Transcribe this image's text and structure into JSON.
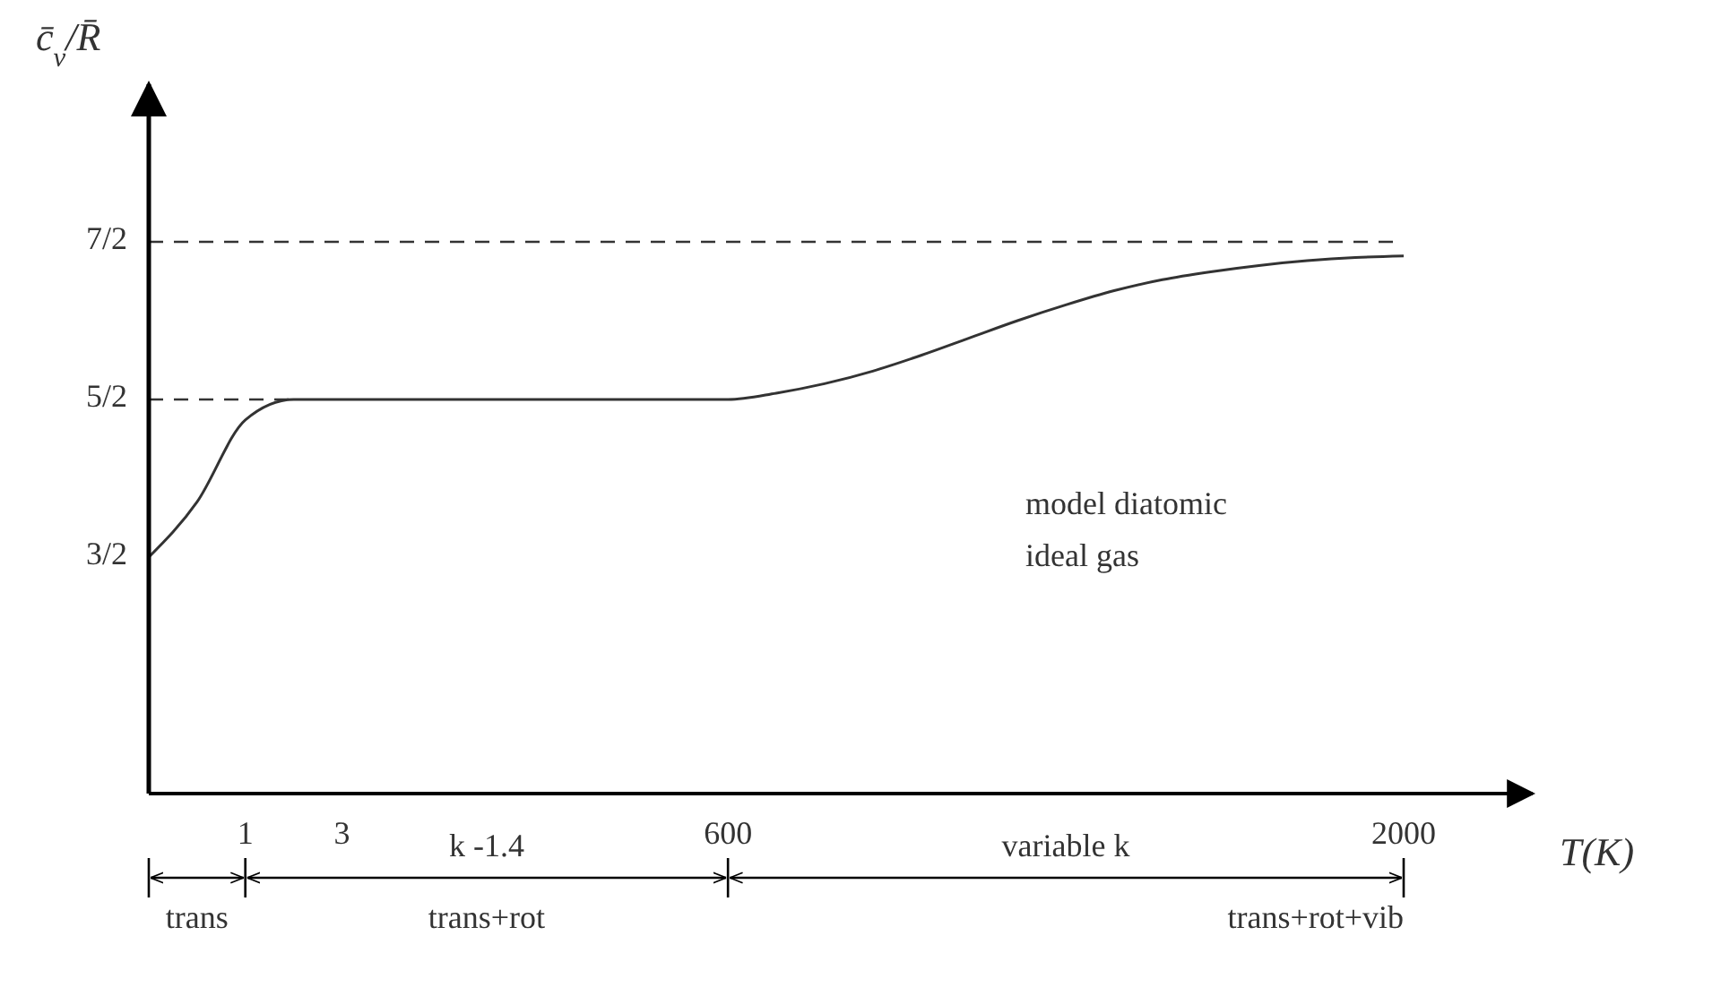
{
  "chart_data": {
    "type": "line",
    "ylabel": "c̄$_{v}$/R̄",
    "xlabel": "T(K)",
    "categories": [
      null,
      null,
      "1",
      null,
      "3",
      null,
      null,
      null,
      null,
      null,
      null,
      null,
      "600",
      null,
      null,
      null,
      null,
      null,
      null,
      null,
      null,
      null,
      null,
      null,
      null,
      null,
      "2000"
    ],
    "ylim": [
      0,
      4.5
    ],
    "yticks": [
      {
        "value": 1.5,
        "label": "3/2"
      },
      {
        "value": 2.5,
        "label": "5/2"
      },
      {
        "value": 3.5,
        "label": "7/2"
      }
    ],
    "series": [
      {
        "color": "#333333",
        "values": [
          1.5,
          1.85,
          2.37,
          2.5,
          2.5,
          2.5,
          2.5,
          2.5,
          2.5,
          2.5,
          2.5,
          2.5,
          2.5,
          2.54,
          2.6,
          2.68,
          2.78,
          2.89,
          3.0,
          3.1,
          3.19,
          3.26,
          3.31,
          3.35,
          3.38,
          3.4,
          3.41
        ]
      }
    ],
    "ref_lines": [
      {
        "axis": "y",
        "value": 2.5,
        "line_style": "dashed"
      },
      {
        "axis": "y",
        "value": 3.5,
        "line_style": "dashed"
      }
    ],
    "annotations": [
      "k -1.4",
      "variable k",
      "trans",
      "trans+rot",
      "trans+rot+vib",
      "model diatomic\nideal gas"
    ],
    "grid": false,
    "marker": "none",
    "line_style": "solid"
  }
}
